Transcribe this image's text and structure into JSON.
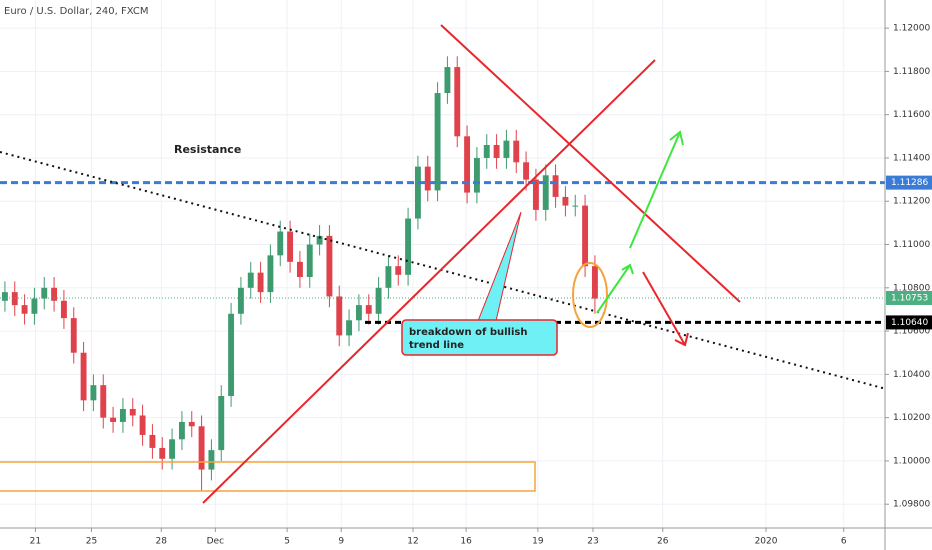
{
  "chart_data": {
    "type": "candlestick",
    "title": "Euro / U.S. Dollar, 240, FXCM",
    "up_color": "#3e9b6f",
    "down_color": "#e0424b",
    "grid": true,
    "xlim": [
      -0.5,
      89.5
    ],
    "ylim": [
      1.0969,
      1.1213
    ],
    "yticks": [
      {
        "value": 1.098,
        "label": "1.09800"
      },
      {
        "value": 1.1,
        "label": "1.10000"
      },
      {
        "value": 1.102,
        "label": "1.10200"
      },
      {
        "value": 1.104,
        "label": "1.10400"
      },
      {
        "value": 1.106,
        "label": "1.10600"
      },
      {
        "value": 1.108,
        "label": "1.10800"
      },
      {
        "value": 1.11,
        "label": "1.11000"
      },
      {
        "value": 1.112,
        "label": "1.11200"
      },
      {
        "value": 1.114,
        "label": "1.11400"
      },
      {
        "value": 1.116,
        "label": "1.11600"
      },
      {
        "value": 1.118,
        "label": "1.11800"
      },
      {
        "value": 1.12,
        "label": "1.12000"
      }
    ],
    "xticks": [
      {
        "value": 3.1,
        "label": "21"
      },
      {
        "value": 8.8,
        "label": "25"
      },
      {
        "value": 15.9,
        "label": "28"
      },
      {
        "value": 21.4,
        "label": "Dec"
      },
      {
        "value": 28.7,
        "label": "5"
      },
      {
        "value": 34.2,
        "label": "9"
      },
      {
        "value": 41.5,
        "label": "12"
      },
      {
        "value": 46.9,
        "label": "16"
      },
      {
        "value": 54.2,
        "label": "19"
      },
      {
        "value": 59.8,
        "label": "23"
      },
      {
        "value": 66.9,
        "label": "26"
      },
      {
        "value": 77.4,
        "label": "2020"
      },
      {
        "value": 85.3,
        "label": "6"
      }
    ],
    "x": [
      0,
      1,
      2,
      3,
      4,
      5,
      6,
      7,
      8,
      9,
      10,
      11,
      12,
      13,
      14,
      15,
      16,
      17,
      18,
      19,
      20,
      21,
      22,
      23,
      24,
      25,
      26,
      27,
      28,
      29,
      30,
      31,
      32,
      33,
      34,
      35,
      36,
      37,
      38,
      39,
      40,
      41,
      42,
      43,
      44,
      45,
      46,
      47,
      48,
      49,
      50,
      51,
      52,
      53,
      54,
      55,
      56,
      57,
      58,
      59,
      60
    ],
    "open": [
      1.1074,
      1.1078,
      1.1072,
      1.1068,
      1.1075,
      1.108,
      1.1074,
      1.1066,
      1.105,
      1.1028,
      1.1035,
      1.102,
      1.1018,
      1.1024,
      1.1021,
      1.1012,
      1.1006,
      1.1001,
      1.101,
      1.1018,
      1.1016,
      1.0996,
      1.1005,
      1.103,
      1.1068,
      1.108,
      1.1087,
      1.1078,
      1.1095,
      1.1106,
      1.1092,
      1.1085,
      1.11,
      1.1104,
      1.1076,
      1.1058,
      1.1065,
      1.1072,
      1.1068,
      1.108,
      1.109,
      1.1086,
      1.1112,
      1.1136,
      1.1125,
      1.117,
      1.1182,
      1.115,
      1.1124,
      1.114,
      1.1146,
      1.114,
      1.1148,
      1.1138,
      1.113,
      1.1116,
      1.1132,
      1.1122,
      1.1118,
      1.1118,
      1.109
    ],
    "high": [
      1.1083,
      1.1083,
      1.1077,
      1.108,
      1.1085,
      1.1085,
      1.1079,
      1.1071,
      1.1055,
      1.104,
      1.104,
      1.1025,
      1.1029,
      1.1029,
      1.1026,
      1.1017,
      1.1011,
      1.1015,
      1.1023,
      1.1023,
      1.1021,
      1.101,
      1.1035,
      1.1073,
      1.1085,
      1.1092,
      1.1092,
      1.11,
      1.1111,
      1.1111,
      1.1097,
      1.1105,
      1.1109,
      1.1109,
      1.1081,
      1.107,
      1.1077,
      1.1077,
      1.1085,
      1.1095,
      1.1095,
      1.1117,
      1.1141,
      1.1141,
      1.1175,
      1.1187,
      1.1187,
      1.1155,
      1.1145,
      1.1151,
      1.1151,
      1.1153,
      1.1153,
      1.1143,
      1.1135,
      1.1137,
      1.1137,
      1.1127,
      1.1123,
      1.1123,
      1.1095
    ],
    "low": [
      1.1069,
      1.1067,
      1.1063,
      1.1063,
      1.107,
      1.1069,
      1.1061,
      1.1045,
      1.1023,
      1.1023,
      1.1015,
      1.1013,
      1.1013,
      1.1016,
      1.1007,
      1.1001,
      1.0996,
      1.0996,
      1.1005,
      1.1011,
      1.0986,
      1.0991,
      1.1,
      1.1025,
      1.1063,
      1.1075,
      1.1073,
      1.1073,
      1.109,
      1.1087,
      1.108,
      1.108,
      1.1095,
      1.1071,
      1.1053,
      1.1053,
      1.106,
      1.1063,
      1.1063,
      1.1075,
      1.1081,
      1.1081,
      1.1107,
      1.112,
      1.112,
      1.1165,
      1.1145,
      1.1119,
      1.1119,
      1.1135,
      1.1135,
      1.1135,
      1.1133,
      1.1125,
      1.1111,
      1.1111,
      1.1117,
      1.1113,
      1.1113,
      1.1085,
      1.1068
    ],
    "close": [
      1.1078,
      1.1072,
      1.1068,
      1.1075,
      1.108,
      1.1074,
      1.1066,
      1.105,
      1.1028,
      1.1035,
      1.102,
      1.1018,
      1.1024,
      1.1021,
      1.1012,
      1.1006,
      1.1001,
      1.101,
      1.1018,
      1.1016,
      1.0996,
      1.1005,
      1.103,
      1.1068,
      1.108,
      1.1087,
      1.1078,
      1.1095,
      1.1106,
      1.1092,
      1.1085,
      1.11,
      1.1104,
      1.1076,
      1.1058,
      1.1065,
      1.1072,
      1.1068,
      1.108,
      1.109,
      1.1086,
      1.1112,
      1.1136,
      1.1125,
      1.117,
      1.1182,
      1.115,
      1.1124,
      1.114,
      1.1146,
      1.114,
      1.1148,
      1.1138,
      1.113,
      1.1116,
      1.1132,
      1.1122,
      1.1118,
      1.1118,
      1.109,
      1.1075
    ],
    "price_markers": [
      {
        "value": 1.11286,
        "label": "1.11286",
        "color": "#3a7bd5"
      },
      {
        "value": 1.10753,
        "label": "1.10753",
        "color": "#4caf82"
      },
      {
        "value": 1.1064,
        "label": "1.10640",
        "color": "#000000"
      }
    ],
    "annotations": {
      "resistance": "Resistance",
      "callout": [
        "breakdown of bullish",
        "trend line"
      ]
    }
  }
}
